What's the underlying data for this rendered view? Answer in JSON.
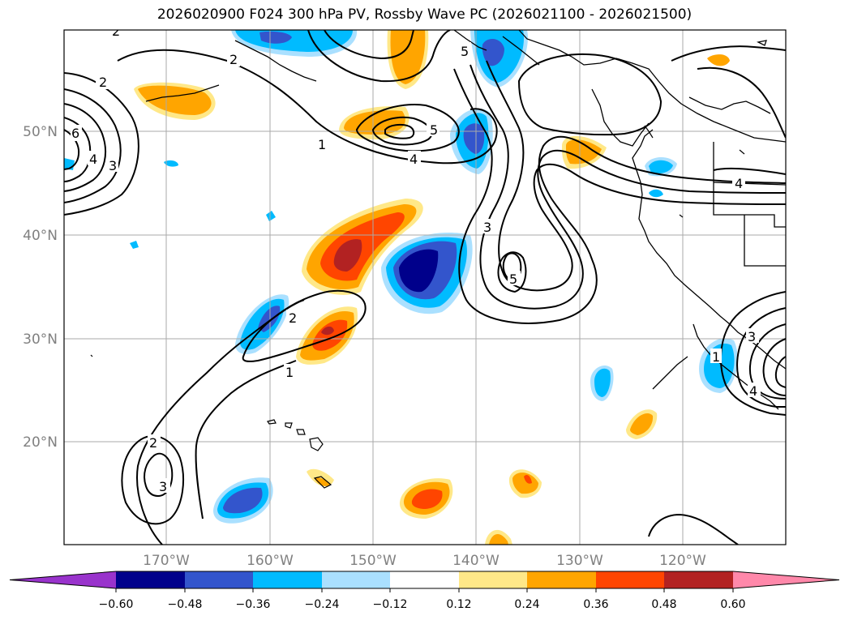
{
  "title": "2026020900 F024 300 hPa PV, Rossby Wave PC (2026021100 - 2026021500)",
  "lat_labels": [
    "50°N",
    "40°N",
    "30°N",
    "20°N"
  ],
  "lon_labels": [
    "170°W",
    "160°W",
    "150°W",
    "140°W",
    "130°W",
    "120°W"
  ],
  "colorbar": {
    "ticks": [
      "−0.60",
      "−0.48",
      "−0.36",
      "−0.24",
      "−0.12",
      "0.12",
      "0.24",
      "0.36",
      "0.48",
      "0.60"
    ],
    "colors": [
      "#9933cc",
      "#00008b",
      "#3355cc",
      "#00bbff",
      "#aae0ff",
      "#ffffff",
      "#ffe888",
      "#ffa500",
      "#ff4500",
      "#b22222",
      "#ff88aa"
    ]
  },
  "contour_labels": [
    "2",
    "2",
    "2",
    "5",
    "6",
    "4",
    "3",
    "5",
    "4",
    "1",
    "4",
    "3",
    "5",
    "2",
    "1",
    "1",
    "3",
    "4",
    "2",
    "3"
  ],
  "colors": {
    "coastline": "#000000",
    "grid": "#aaaaaa",
    "contour": "#000000"
  }
}
